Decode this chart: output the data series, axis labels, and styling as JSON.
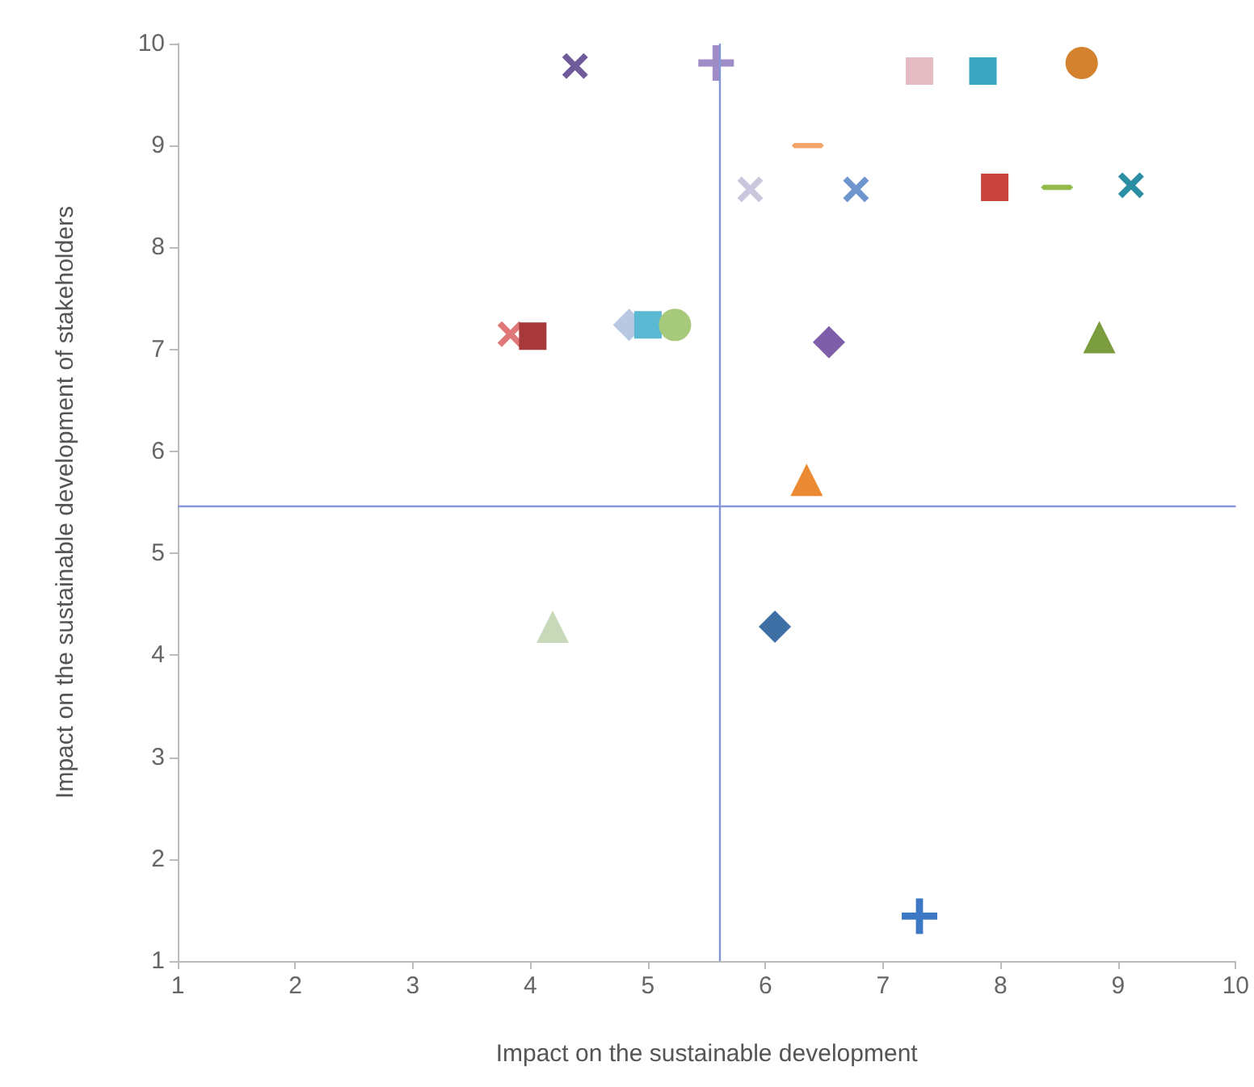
{
  "chart_data": {
    "type": "scatter",
    "xlabel": "Impact on the sustainable development",
    "ylabel": "Impact on the sustainable development of stakeholders",
    "xlim": [
      1,
      10
    ],
    "ylim": [
      1,
      10
    ],
    "xticks": [
      1,
      2,
      3,
      4,
      5,
      6,
      7,
      8,
      9,
      10
    ],
    "yticks": [
      1,
      2,
      3,
      4,
      5,
      6,
      7,
      8,
      9,
      10
    ],
    "grid": false,
    "ref_lines": [
      {
        "axis": "x",
        "value": 5.61,
        "color": "#8796d6"
      },
      {
        "axis": "y",
        "value": 5.47,
        "color": "#8796d6"
      }
    ],
    "series": [
      {
        "color": "#6f5b9a",
        "marker": "cross",
        "x": [
          4.38
        ],
        "values": [
          9.78
        ]
      },
      {
        "color": "#9d8cc6",
        "marker": "plus",
        "x": [
          5.58
        ],
        "values": [
          9.81
        ]
      },
      {
        "color": "#e6bcc4",
        "marker": "square",
        "x": [
          7.31
        ],
        "values": [
          9.73
        ]
      },
      {
        "color": "#3aa6c0",
        "marker": "square",
        "x": [
          7.85
        ],
        "values": [
          9.73
        ]
      },
      {
        "color": "#d4822e",
        "marker": "circle",
        "x": [
          8.69
        ],
        "values": [
          9.81
        ]
      },
      {
        "color": "#f4a46c",
        "x": [
          6.36
        ],
        "values": [
          9.0
        ]
      },
      {
        "color": "#cbc6de",
        "marker": "cross",
        "x": [
          5.87
        ],
        "values": [
          8.57
        ]
      },
      {
        "color": "#6f95cf",
        "marker": "cross",
        "x": [
          6.77
        ],
        "values": [
          8.57
        ]
      },
      {
        "color": "#c9453e",
        "marker": "square",
        "x": [
          7.95
        ],
        "values": [
          8.59
        ]
      },
      {
        "color": "#95bb4a",
        "x": [
          8.48
        ],
        "values": [
          8.59
        ]
      },
      {
        "color": "#2b8fa3",
        "marker": "cross",
        "x": [
          9.11
        ],
        "values": [
          8.61
        ]
      },
      {
        "color": "#e0787a",
        "marker": "cross",
        "x": [
          3.83
        ],
        "values": [
          7.15
        ]
      },
      {
        "color": "#a8393a",
        "marker": "square",
        "x": [
          4.02
        ],
        "values": [
          7.13
        ]
      },
      {
        "color": "#b8c8e2",
        "marker": "diamond",
        "x": [
          4.84
        ],
        "values": [
          7.24
        ]
      },
      {
        "color": "#5bb8d2",
        "marker": "square",
        "x": [
          5.0
        ],
        "values": [
          7.24
        ]
      },
      {
        "color": "#a6c97a",
        "marker": "circle",
        "x": [
          5.23
        ],
        "values": [
          7.24
        ]
      },
      {
        "color": "#7e5ea8",
        "marker": "diamond",
        "x": [
          6.54
        ],
        "values": [
          7.07
        ]
      },
      {
        "color": "#7b9c3c",
        "marker": "triangle",
        "x": [
          8.84
        ],
        "values": [
          7.12
        ]
      },
      {
        "color": "#ec8a34",
        "marker": "triangle",
        "x": [
          6.35
        ],
        "values": [
          5.72
        ]
      },
      {
        "color": "#c7d9b8",
        "marker": "triangle",
        "x": [
          4.19
        ],
        "values": [
          4.28
        ]
      },
      {
        "color": "#3d6ea4",
        "marker": "diamond",
        "x": [
          6.08
        ],
        "values": [
          4.28
        ]
      },
      {
        "color": "#3d78c4",
        "marker": "plus",
        "x": [
          7.31
        ],
        "values": [
          1.44
        ]
      }
    ]
  }
}
